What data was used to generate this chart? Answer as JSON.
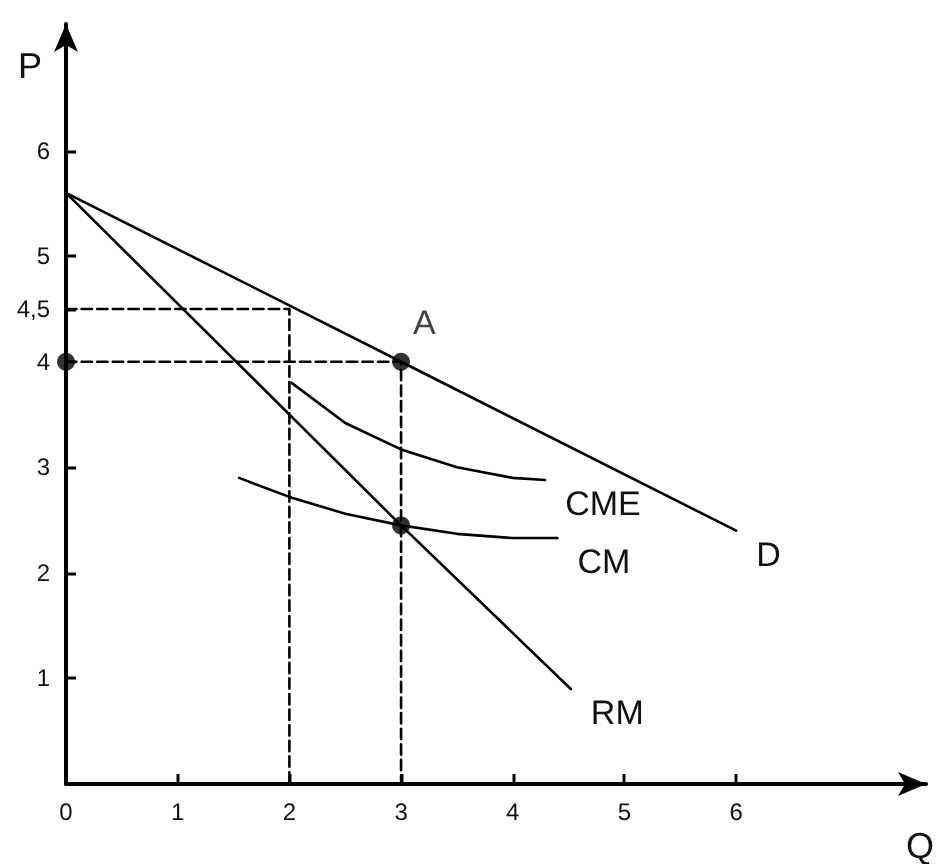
{
  "chart_data": {
    "type": "line",
    "xlabel": "Q",
    "ylabel": "P",
    "xlim": [
      0,
      7.7
    ],
    "ylim": [
      0,
      7.2
    ],
    "xticks": [
      0,
      1,
      2,
      3,
      4,
      5,
      6
    ],
    "yticks": [
      1,
      2,
      3,
      4,
      {
        "value": 4.5,
        "label": "4,5"
      },
      5,
      6
    ],
    "grid": false,
    "legend": false,
    "marker": "none",
    "line_style": "solid",
    "series": [
      {
        "name": "D",
        "color": "#000000",
        "x": [
          0,
          3,
          6
        ],
        "values": [
          5.6,
          4,
          2.4
        ]
      },
      {
        "name": "RM",
        "color": "#000000",
        "x": [
          0,
          3,
          4.52
        ],
        "values": [
          5.6,
          2.45,
          0.9
        ]
      },
      {
        "name": "CME",
        "color": "#000000",
        "x": [
          2.02,
          2.5,
          3,
          3.5,
          4,
          4.29
        ],
        "values": [
          3.8,
          3.42,
          3.17,
          3.0,
          2.9,
          2.88
        ]
      },
      {
        "name": "CM",
        "color": "#000000",
        "x": [
          1.55,
          2,
          2.5,
          3,
          3.5,
          4,
          4.4
        ],
        "values": [
          2.9,
          2.72,
          2.56,
          2.45,
          2.37,
          2.33,
          2.33
        ]
      },
      {
        "color": "#000000",
        "line_style": "dashed",
        "x": [
          0,
          2,
          2
        ],
        "values": [
          4.5,
          4.5,
          0
        ]
      },
      {
        "color": "#000000",
        "line_style": "dashed",
        "x": [
          0,
          3,
          3
        ],
        "values": [
          4,
          4,
          0
        ]
      },
      {
        "type": "scatter",
        "color": "#000000",
        "marker": "circle",
        "x": [
          0,
          3,
          3
        ],
        "values": [
          4,
          4,
          2.45
        ]
      }
    ],
    "annotations": [
      {
        "text": "A",
        "x": 3,
        "y": 4
      }
    ]
  }
}
